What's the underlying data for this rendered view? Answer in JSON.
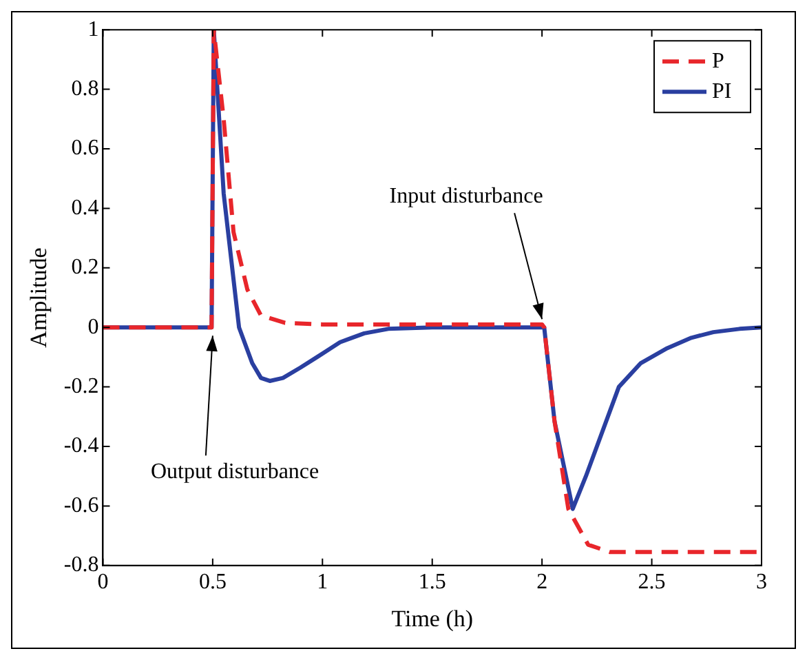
{
  "chart_data": {
    "type": "line",
    "xlabel": "Time (h)",
    "ylabel": "Amplitude",
    "xlim": [
      0,
      3
    ],
    "xticks": [
      0,
      0.5,
      1,
      1.5,
      2,
      2.5,
      3
    ],
    "ylim": [
      -0.8,
      1
    ],
    "yticks": [
      -0.8,
      -0.6,
      -0.4,
      -0.2,
      0,
      0.2,
      0.4,
      0.6,
      0.8,
      1
    ],
    "grid": false,
    "legend": "top right",
    "marker": "none",
    "series": [
      {
        "name": "P",
        "color": "#e8262b",
        "line_style": "dashed",
        "x": [
          0,
          0.495,
          0.505,
          0.55,
          0.595,
          0.658,
          0.72,
          0.83,
          1.0,
          2.0,
          2.01,
          2.057,
          2.12,
          2.21,
          2.31,
          2.5,
          3
        ],
        "values": [
          0,
          0,
          1,
          0.7,
          0.32,
          0.127,
          0.04,
          0.015,
          0.01,
          0.01,
          0,
          -0.315,
          -0.61,
          -0.73,
          -0.755,
          -0.755,
          -0.755
        ]
      },
      {
        "name": "PI",
        "color": "#2a3fa0",
        "line_style": "solid",
        "x": [
          0,
          0.495,
          0.505,
          0.55,
          0.62,
          0.68,
          0.72,
          0.76,
          0.82,
          0.9,
          0.975,
          1.08,
          1.19,
          1.3,
          1.5,
          2.0,
          2.01,
          2.057,
          2.14,
          2.2,
          2.25,
          2.35,
          2.45,
          2.57,
          2.68,
          2.78,
          2.9,
          3
        ],
        "values": [
          0,
          0,
          1,
          0.45,
          0,
          -0.12,
          -0.17,
          -0.18,
          -0.17,
          -0.135,
          -0.1,
          -0.05,
          -0.02,
          -0.005,
          0,
          0,
          0,
          -0.315,
          -0.61,
          -0.5,
          -0.4,
          -0.2,
          -0.12,
          -0.07,
          -0.035,
          -0.016,
          -0.005,
          0
        ]
      }
    ],
    "annotations": [
      {
        "text": "Input disturbance",
        "x": 2,
        "y": 0
      },
      {
        "text": "Output disturbance",
        "x": 0.5,
        "y": 0
      }
    ]
  }
}
